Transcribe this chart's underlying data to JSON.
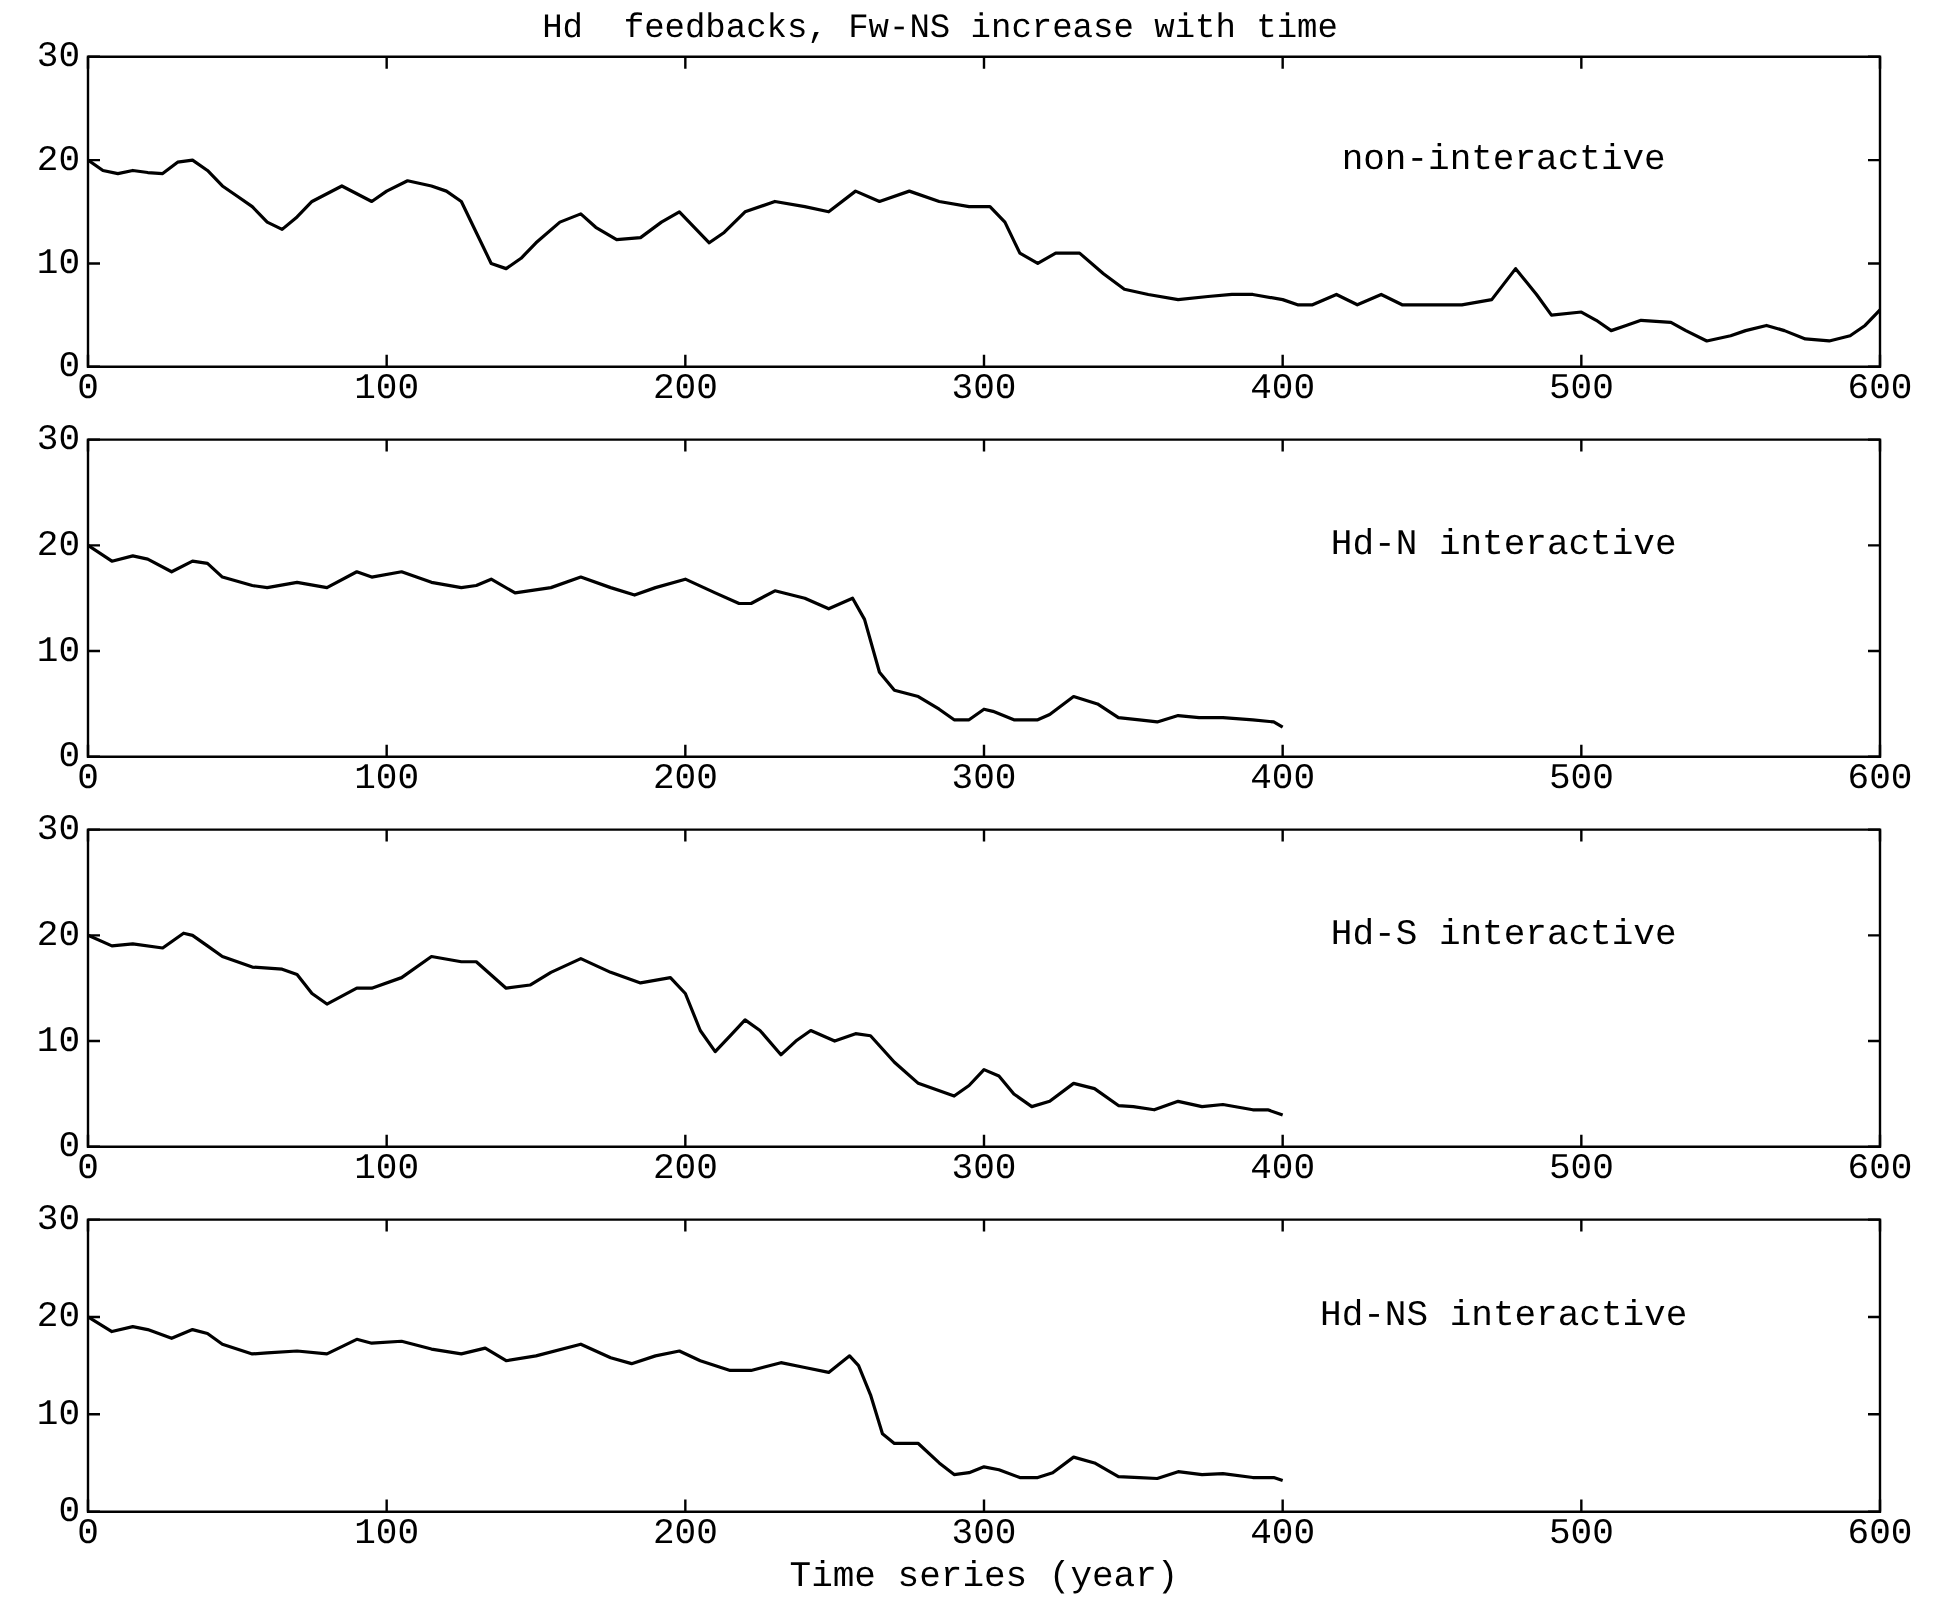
{
  "chart_data": [
    {
      "type": "line",
      "title": "Hd  feedbacks, Fw-NS increase with time",
      "annotations": [
        "non-interactive"
      ],
      "color": "#000000",
      "marker": "none",
      "line_style": "solid",
      "xlim": [
        0,
        600
      ],
      "xticks": [
        0,
        100,
        200,
        300,
        400,
        500,
        600
      ],
      "ylim": [
        0,
        30
      ],
      "yticks": [
        0,
        10,
        20,
        30
      ],
      "x": [
        0,
        5,
        10,
        15,
        20,
        25,
        30,
        35,
        40,
        45,
        50,
        55,
        60,
        65,
        70,
        75,
        85,
        95,
        100,
        107,
        115,
        120,
        125,
        130,
        135,
        140,
        145,
        150,
        158,
        165,
        170,
        177,
        185,
        192,
        198,
        203,
        208,
        213,
        220,
        230,
        240,
        248,
        257,
        265,
        275,
        285,
        295,
        302,
        307,
        312,
        318,
        324,
        332,
        340,
        347,
        355,
        365,
        375,
        383,
        390,
        400,
        405,
        410,
        418,
        425,
        433,
        440,
        450,
        460,
        470,
        478,
        485,
        490,
        500,
        505,
        510,
        515,
        520,
        530,
        535,
        542,
        550,
        555,
        562,
        568,
        575,
        583,
        590,
        595,
        600
      ],
      "values": [
        20,
        19,
        18.7,
        19,
        18.8,
        18.7,
        19.8,
        20,
        19,
        17.5,
        16.5,
        15.5,
        14,
        13.3,
        14.5,
        16,
        17.5,
        16,
        17,
        18,
        17.5,
        17,
        16,
        13,
        10,
        9.5,
        10.5,
        12,
        14,
        14.8,
        13.5,
        12.3,
        12.5,
        14,
        15,
        13.5,
        12,
        13,
        15,
        16,
        15.5,
        15,
        17,
        16,
        17,
        16,
        15.5,
        15.5,
        14,
        11,
        10,
        11,
        11,
        9,
        7.5,
        7,
        6.5,
        6.8,
        7,
        7,
        6.5,
        6,
        6,
        7,
        6,
        7,
        6,
        6,
        6,
        6.5,
        9.5,
        7,
        5,
        5.3,
        4.5,
        3.5,
        4,
        4.5,
        4.3,
        3.5,
        2.5,
        3,
        3.5,
        4,
        3.5,
        2.7,
        2.5,
        3,
        4,
        5.5
      ]
    },
    {
      "type": "line",
      "annotations": [
        "Hd-N interactive"
      ],
      "color": "#000000",
      "marker": "none",
      "line_style": "solid",
      "xlim": [
        0,
        600
      ],
      "xticks": [
        0,
        100,
        200,
        300,
        400,
        500,
        600
      ],
      "ylim": [
        0,
        30
      ],
      "yticks": [
        0,
        10,
        20,
        30
      ],
      "x": [
        0,
        8,
        15,
        20,
        28,
        35,
        40,
        45,
        55,
        60,
        70,
        80,
        90,
        95,
        105,
        115,
        125,
        130,
        135,
        143,
        155,
        165,
        175,
        183,
        190,
        200,
        210,
        218,
        222,
        230,
        240,
        248,
        252,
        256,
        260,
        265,
        270,
        278,
        285,
        290,
        295,
        300,
        303,
        310,
        318,
        322,
        330,
        338,
        345,
        352,
        358,
        365,
        372,
        380,
        390,
        397,
        400
      ],
      "values": [
        20,
        18.5,
        19,
        18.7,
        17.5,
        18.5,
        18.3,
        17,
        16.2,
        16,
        16.5,
        16,
        17.5,
        17,
        17.5,
        16.5,
        16,
        16.2,
        16.8,
        15.5,
        16,
        17,
        16,
        15.3,
        16,
        16.8,
        15.5,
        14.5,
        14.5,
        15.7,
        15,
        14,
        14.5,
        15,
        13,
        8,
        6.3,
        5.7,
        4.5,
        3.5,
        3.5,
        4.5,
        4.3,
        3.5,
        3.5,
        4,
        5.7,
        5,
        3.7,
        3.5,
        3.3,
        3.9,
        3.7,
        3.7,
        3.5,
        3.3,
        2.8
      ]
    },
    {
      "type": "line",
      "annotations": [
        "Hd-S interactive"
      ],
      "color": "#000000",
      "marker": "none",
      "line_style": "solid",
      "xlim": [
        0,
        600
      ],
      "xticks": [
        0,
        100,
        200,
        300,
        400,
        500,
        600
      ],
      "ylim": [
        0,
        30
      ],
      "yticks": [
        0,
        10,
        20,
        30
      ],
      "x": [
        0,
        8,
        15,
        25,
        32,
        35,
        40,
        45,
        55,
        65,
        70,
        75,
        80,
        90,
        95,
        105,
        115,
        125,
        130,
        140,
        148,
        155,
        165,
        175,
        185,
        195,
        200,
        205,
        210,
        215,
        220,
        225,
        232,
        237,
        242,
        250,
        257,
        262,
        270,
        278,
        290,
        295,
        300,
        305,
        310,
        316,
        322,
        330,
        337,
        345,
        350,
        357,
        365,
        373,
        380,
        390,
        395,
        400
      ],
      "values": [
        20,
        19,
        19.2,
        18.8,
        20.2,
        20,
        19,
        18,
        17,
        16.8,
        16.3,
        14.5,
        13.5,
        15,
        15,
        16,
        18,
        17.5,
        17.5,
        15,
        15.3,
        16.5,
        17.8,
        16.5,
        15.5,
        16,
        14.5,
        11,
        9,
        10.5,
        12,
        11,
        8.7,
        10,
        11,
        10,
        10.7,
        10.5,
        8,
        6,
        4.8,
        5.8,
        7.3,
        6.7,
        5,
        3.8,
        4.3,
        6,
        5.5,
        3.9,
        3.8,
        3.5,
        4.3,
        3.8,
        4,
        3.5,
        3.5,
        3
      ]
    },
    {
      "type": "line",
      "annotations": [
        "Hd-NS interactive"
      ],
      "xlabel": "Time series (year)",
      "color": "#000000",
      "marker": "none",
      "line_style": "solid",
      "xlim": [
        0,
        600
      ],
      "xticks": [
        0,
        100,
        200,
        300,
        400,
        500,
        600
      ],
      "ylim": [
        0,
        30
      ],
      "yticks": [
        0,
        10,
        20,
        30
      ],
      "x": [
        0,
        8,
        15,
        20,
        28,
        35,
        40,
        45,
        55,
        60,
        70,
        80,
        90,
        95,
        105,
        115,
        125,
        133,
        140,
        150,
        165,
        175,
        182,
        190,
        198,
        205,
        215,
        222,
        232,
        240,
        248,
        255,
        258,
        262,
        266,
        270,
        278,
        285,
        290,
        295,
        300,
        305,
        312,
        318,
        323,
        330,
        337,
        345,
        352,
        358,
        365,
        373,
        380,
        390,
        397,
        400
      ],
      "values": [
        20,
        18.5,
        19,
        18.7,
        17.8,
        18.7,
        18.3,
        17.2,
        16.2,
        16.3,
        16.5,
        16.2,
        17.7,
        17.3,
        17.5,
        16.7,
        16.2,
        16.8,
        15.5,
        16,
        17.2,
        15.8,
        15.2,
        16,
        16.5,
        15.5,
        14.5,
        14.5,
        15.3,
        14.8,
        14.3,
        16,
        15,
        12,
        8,
        7,
        7,
        5,
        3.8,
        4,
        4.6,
        4.3,
        3.5,
        3.5,
        4,
        5.6,
        5,
        3.6,
        3.5,
        3.4,
        4.1,
        3.8,
        3.9,
        3.5,
        3.5,
        3.2
      ]
    }
  ]
}
